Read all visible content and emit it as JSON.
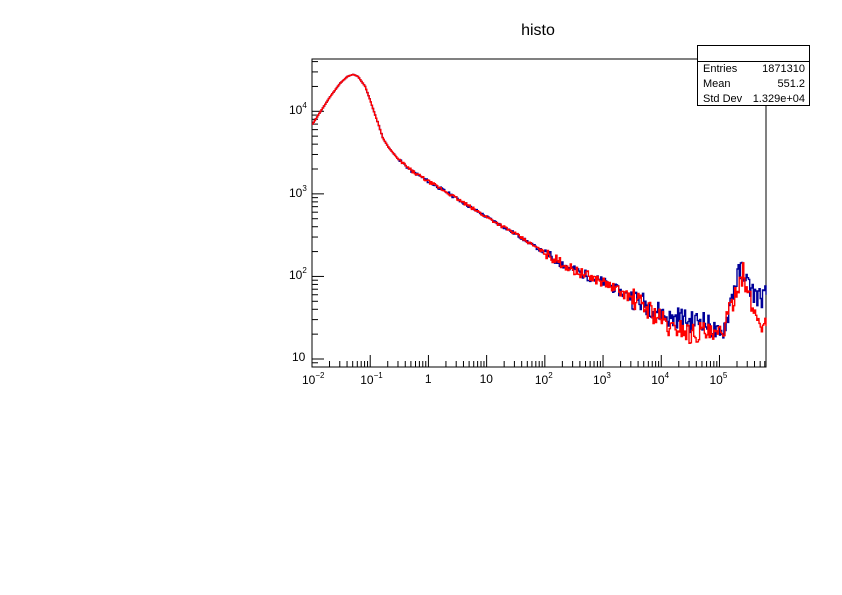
{
  "title": "histo",
  "stats_box": {
    "header": "",
    "rows": [
      {
        "label": "Entries",
        "value": "1871310"
      },
      {
        "label": "Mean",
        "value": "551.2"
      },
      {
        "label": "Std Dev",
        "value": "1.329e+04"
      }
    ]
  },
  "colors": {
    "series_blue": "#000099",
    "series_red": "#ff0000",
    "frame": "#000000",
    "background": "#ffffff"
  },
  "x_ticks": [
    {
      "base": "10",
      "exp": "−2",
      "value": 0.01
    },
    {
      "base": "10",
      "exp": "−1",
      "value": 0.1
    },
    {
      "base": "1",
      "exp": "",
      "value": 1
    },
    {
      "base": "10",
      "exp": "",
      "value": 10
    },
    {
      "base": "10",
      "exp": "2",
      "value": 100
    },
    {
      "base": "10",
      "exp": "3",
      "value": 1000
    },
    {
      "base": "10",
      "exp": "4",
      "value": 10000
    },
    {
      "base": "10",
      "exp": "5",
      "value": 100000
    }
  ],
  "y_ticks": [
    {
      "base": "10",
      "exp": "",
      "value": 10
    },
    {
      "base": "10",
      "exp": "2",
      "value": 100
    },
    {
      "base": "10",
      "exp": "3",
      "value": 1000
    },
    {
      "base": "10",
      "exp": "4",
      "value": 10000
    }
  ],
  "chart_data": {
    "type": "line",
    "title": "histo",
    "xlabel": "",
    "ylabel": "",
    "xscale": "log",
    "yscale": "log",
    "xlim": [
      0.01,
      630000
    ],
    "ylim": [
      8,
      43000
    ],
    "grid": false,
    "legend": {
      "position": "top-right",
      "entries": [
        "Entries 1871310",
        "Mean 551.2",
        "Std Dev 1.329e+04"
      ]
    },
    "series": [
      {
        "name": "histo (blue)",
        "color": "#000099",
        "x": [
          0.01,
          0.015,
          0.02,
          0.03,
          0.04,
          0.05,
          0.06,
          0.08,
          0.1,
          0.13,
          0.16,
          0.2,
          0.3,
          0.5,
          1,
          2,
          5,
          10,
          30,
          100,
          300,
          1000,
          3000,
          6000,
          10000,
          15000,
          20000,
          30000,
          50000,
          80000,
          100000,
          130000,
          160000,
          200000,
          250000,
          300000,
          400000,
          500000,
          630000
        ],
        "y": [
          7000,
          11000,
          15000,
          22000,
          26500,
          28000,
          26500,
          20000,
          13000,
          7500,
          4800,
          3700,
          2600,
          1900,
          1400,
          1050,
          700,
          520,
          330,
          190,
          120,
          85,
          55,
          45,
          35,
          30,
          33,
          28,
          30,
          22,
          18,
          30,
          60,
          100,
          130,
          80,
          60,
          55,
          60
        ]
      },
      {
        "name": "histo (red)",
        "color": "#ff0000",
        "x": [
          0.01,
          0.015,
          0.02,
          0.03,
          0.04,
          0.05,
          0.06,
          0.08,
          0.1,
          0.13,
          0.16,
          0.2,
          0.3,
          0.5,
          1,
          2,
          5,
          10,
          30,
          100,
          300,
          1000,
          3000,
          6000,
          10000,
          15000,
          20000,
          30000,
          50000,
          80000,
          100000,
          130000,
          160000,
          200000,
          250000,
          300000,
          400000,
          500000,
          630000
        ],
        "y": [
          7000,
          11000,
          15000,
          22000,
          26500,
          28000,
          26500,
          20000,
          13000,
          7500,
          4800,
          3700,
          2600,
          1900,
          1400,
          1050,
          700,
          520,
          330,
          190,
          120,
          85,
          55,
          40,
          30,
          22,
          25,
          20,
          22,
          18,
          20,
          28,
          45,
          80,
          110,
          60,
          35,
          28,
          25
        ]
      }
    ]
  }
}
